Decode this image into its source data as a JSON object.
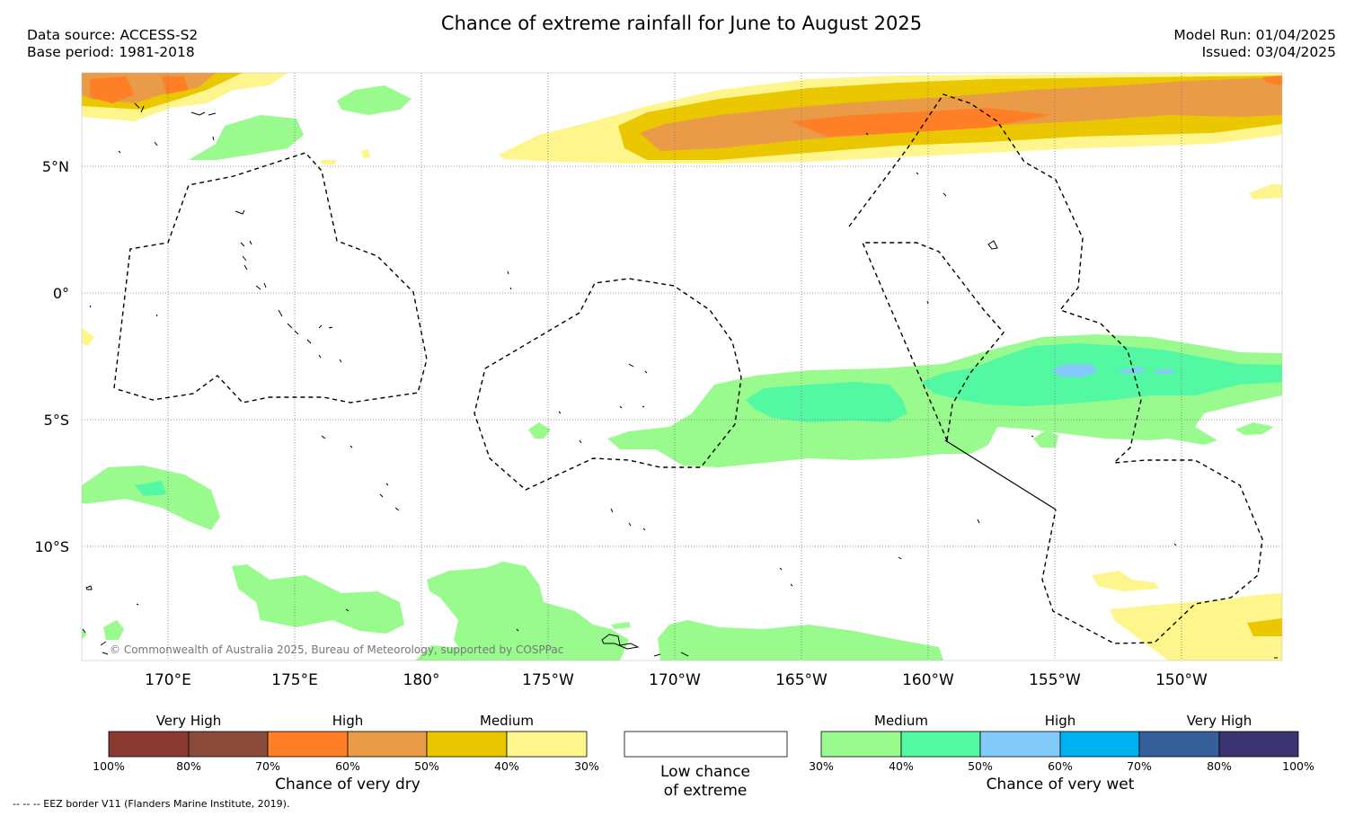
{
  "header": {
    "title": "Chance of extreme rainfall for June to August 2025",
    "data_source": "Data source: ACCESS-S2",
    "base_period": "Base period: 1981-2018",
    "model_run": "Model Run: 01/04/2025",
    "issued": "Issued: 03/04/2025"
  },
  "map": {
    "lat_labels": [
      "5°N",
      "0°",
      "5°S",
      "10°S"
    ],
    "lon_labels": [
      "170°E",
      "175°E",
      "180°",
      "175°W",
      "170°W",
      "165°W",
      "160°W",
      "155°W",
      "150°W"
    ],
    "copyright": "© Commonwealth of Australia 2025, Bureau of Meteorology, supported by COSPPac"
  },
  "legend_dry": {
    "categories": [
      "Very High",
      "High",
      "Medium"
    ],
    "colors": [
      "#8b3a32",
      "#8a4b3a",
      "#ff7f27",
      "#ea9b47",
      "#eac700",
      "#fef68c"
    ],
    "ticks": [
      "100%",
      "80%",
      "70%",
      "60%",
      "50%",
      "40%",
      "30%"
    ],
    "caption": "Chance of very dry"
  },
  "legend_low": {
    "line1": "Low chance",
    "line2": "of extreme"
  },
  "legend_wet": {
    "categories": [
      "Medium",
      "High",
      "Very High"
    ],
    "colors": [
      "#99fa8e",
      "#52f8a2",
      "#85cbfa",
      "#00b0ef",
      "#365e98",
      "#3b3470"
    ],
    "ticks": [
      "30%",
      "40%",
      "50%",
      "60%",
      "70%",
      "80%",
      "100%"
    ],
    "caption": "Chance of very wet"
  },
  "footer": {
    "eez_note": "--  --  -- EEZ border V11 (Flanders Marine Institute, 2019)."
  }
}
